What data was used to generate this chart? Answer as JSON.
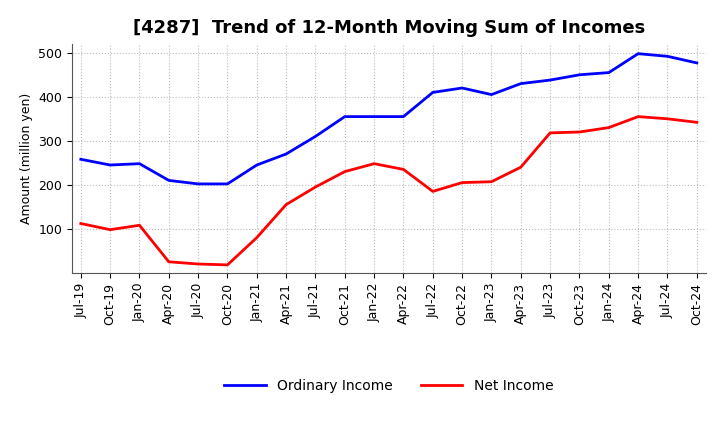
{
  "title": "[4287]  Trend of 12-Month Moving Sum of Incomes",
  "ylabel": "Amount (million yen)",
  "x_labels": [
    "Jul-19",
    "Oct-19",
    "Jan-20",
    "Apr-20",
    "Jul-20",
    "Oct-20",
    "Jan-21",
    "Apr-21",
    "Jul-21",
    "Oct-21",
    "Jan-22",
    "Apr-22",
    "Jul-22",
    "Oct-22",
    "Jan-23",
    "Apr-23",
    "Jul-23",
    "Oct-23",
    "Jan-24",
    "Apr-24",
    "Jul-24",
    "Oct-24"
  ],
  "ordinary_income": [
    258,
    245,
    248,
    210,
    202,
    202,
    245,
    270,
    310,
    355,
    355,
    355,
    410,
    420,
    405,
    430,
    438,
    450,
    455,
    498,
    492,
    477
  ],
  "net_income": [
    112,
    98,
    108,
    25,
    20,
    18,
    80,
    155,
    195,
    230,
    248,
    235,
    185,
    205,
    207,
    240,
    318,
    320,
    330,
    355,
    350,
    342
  ],
  "ordinary_color": "#0000FF",
  "net_color": "#FF0000",
  "ylim_min": 0,
  "ylim_max": 520,
  "yticks": [
    100,
    200,
    300,
    400,
    500
  ],
  "grid_color": "#aaaaaa",
  "background_color": "#ffffff",
  "legend_ordinary": "Ordinary Income",
  "legend_net": "Net Income",
  "line_width": 2.0,
  "title_fontsize": 13,
  "axis_fontsize": 9,
  "tick_fontsize": 9
}
